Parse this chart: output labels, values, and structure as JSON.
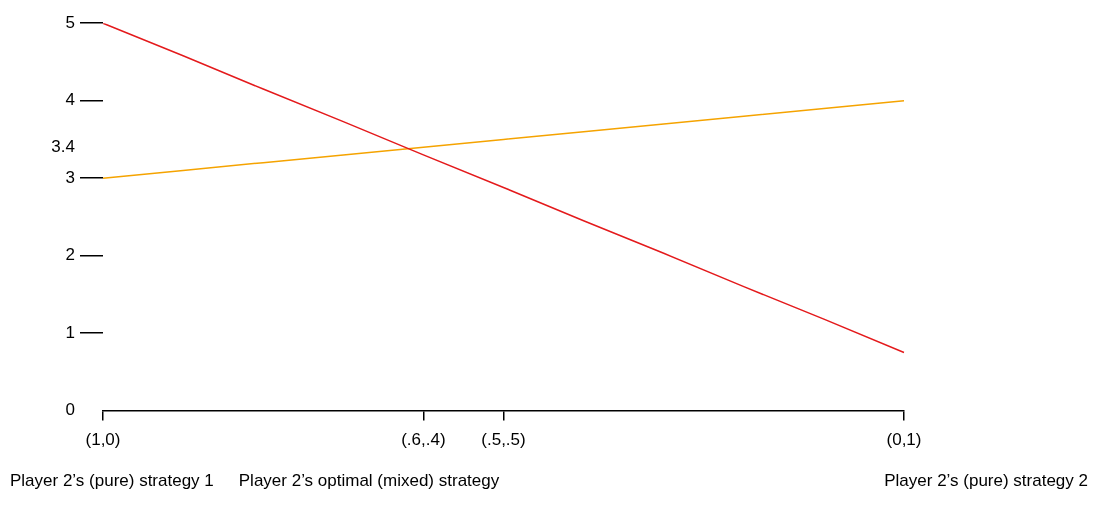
{
  "chart_data": {
    "type": "line",
    "categories": [
      "(1,0)",
      null,
      null,
      null,
      "(.6,.4)",
      "(.5,.5)",
      null,
      null,
      null,
      null,
      "(0,1)"
    ],
    "series": [
      {
        "color": "#e41a1c",
        "values": [
          5,
          4.58,
          4.15,
          3.73,
          3.3,
          2.88,
          2.45,
          2.03,
          1.6,
          1.18,
          0.75
        ]
      },
      {
        "color": "#f5a300",
        "values": [
          3,
          3.1,
          3.2,
          3.3,
          3.4,
          3.5,
          3.6,
          3.7,
          3.8,
          3.9,
          4
        ]
      }
    ],
    "ylim": [
      0,
      5
    ],
    "yticks": [
      0,
      1,
      2,
      3,
      {
        "value": 3.4,
        "label": "3.4"
      },
      4,
      5
    ],
    "grid": false,
    "legend": false,
    "marker": "none",
    "line_style": "solid",
    "annotations": [
      "Player 2’s (pure) strategy 1",
      "Player 2’s optimal (mixed) strategy",
      "Player 2’s (pure) strategy 2"
    ]
  }
}
